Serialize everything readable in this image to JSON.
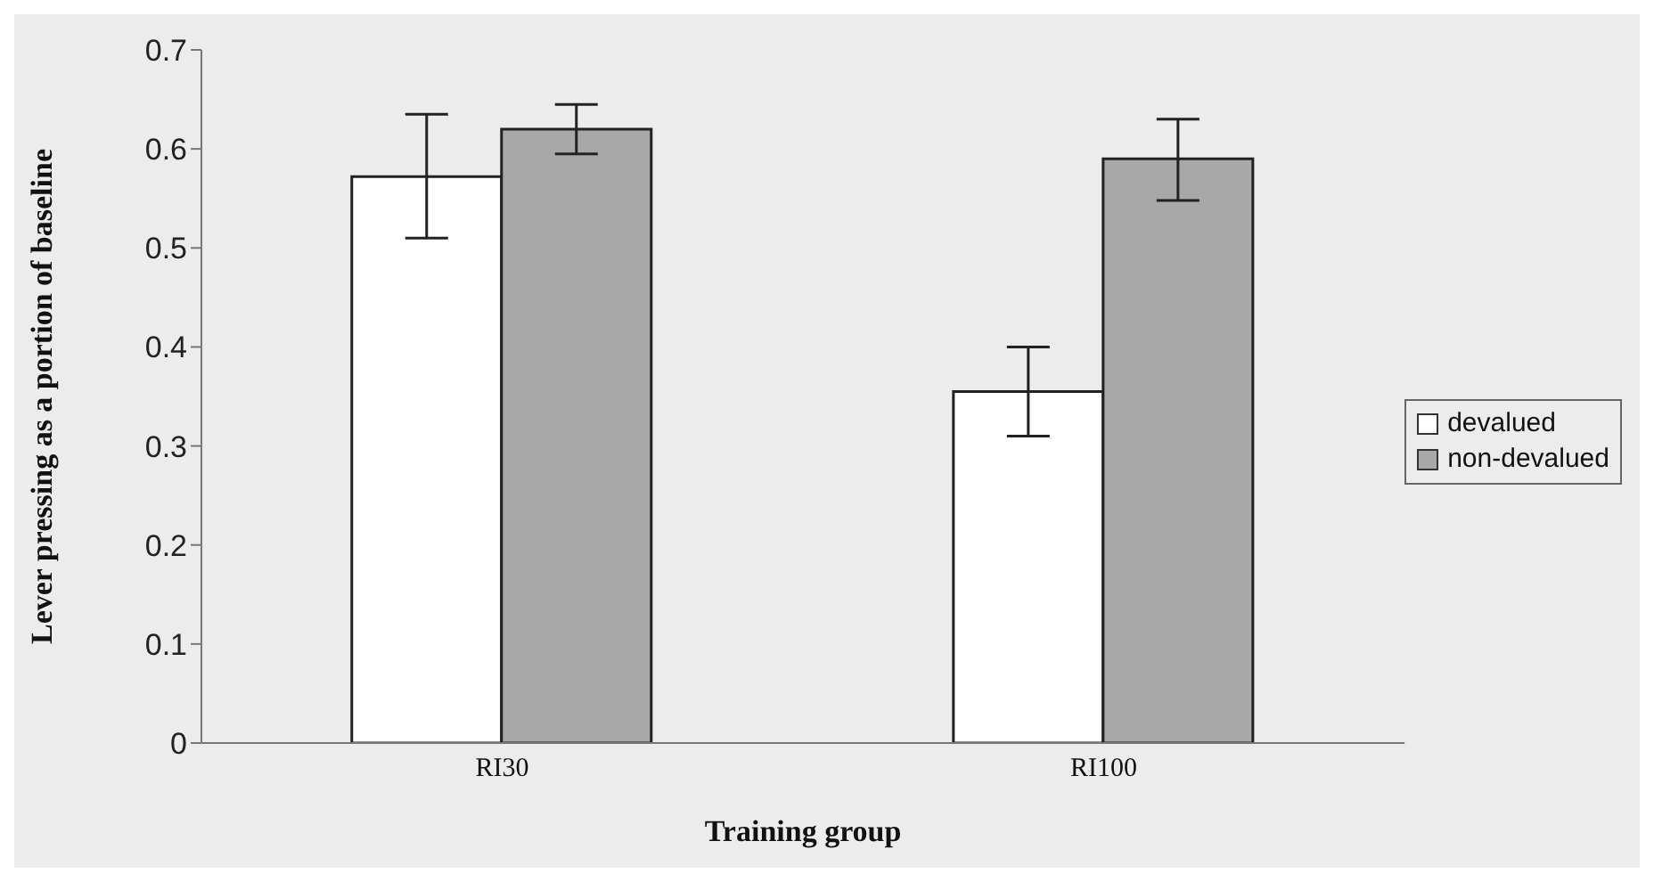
{
  "chart_data": {
    "type": "bar",
    "xlabel": "Training group",
    "ylabel": "Lever pressing as a portion of baseline",
    "categories": [
      "RI30",
      "RI100"
    ],
    "series": [
      {
        "name": "devalued",
        "color": "#ffffff",
        "values": [
          0.572,
          0.355
        ],
        "errors": [
          [
            0.51,
            0.635
          ],
          [
            0.31,
            0.4
          ]
        ]
      },
      {
        "name": "non-devalued",
        "color": "#a8a8a8",
        "values": [
          0.62,
          0.59
        ],
        "errors": [
          [
            0.595,
            0.645
          ],
          [
            0.548,
            0.63
          ]
        ]
      }
    ],
    "ylim": [
      0,
      0.7
    ],
    "yticks": [
      0,
      0.1,
      0.2,
      0.3,
      0.4,
      0.5,
      0.6,
      0.7
    ],
    "grid": false,
    "legend": "right"
  }
}
